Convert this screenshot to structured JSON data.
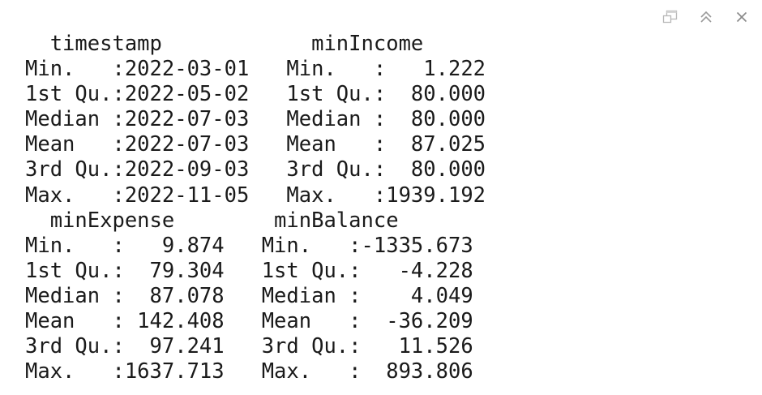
{
  "toolbar": {
    "icons": [
      "popout-window-icon",
      "collapse-output-icon",
      "close-output-icon"
    ]
  },
  "output": {
    "lines": [
      "  timestamp            minIncome   ",
      "Min.   :2022-03-01   Min.   :   1.222  ",
      "1st Qu.:2022-05-02   1st Qu.:  80.000  ",
      "Median :2022-07-03   Median :  80.000  ",
      "Mean   :2022-07-03   Mean   :  87.025  ",
      "3rd Qu.:2022-09-03   3rd Qu.:  80.000  ",
      "Max.   :2022-11-05   Max.   :1939.192  ",
      "  minExpense        minBalance       ",
      "Min.   :   9.874   Min.   :-1335.673  ",
      "1st Qu.:  79.304   1st Qu.:   -4.228  ",
      "Median :  87.078   Median :    4.049  ",
      "Mean   : 142.408   Mean   :  -36.209  ",
      "3rd Qu.:  97.241   3rd Qu.:   11.526  ",
      "Max.   :1637.713   Max.   :  893.806  "
    ]
  }
}
